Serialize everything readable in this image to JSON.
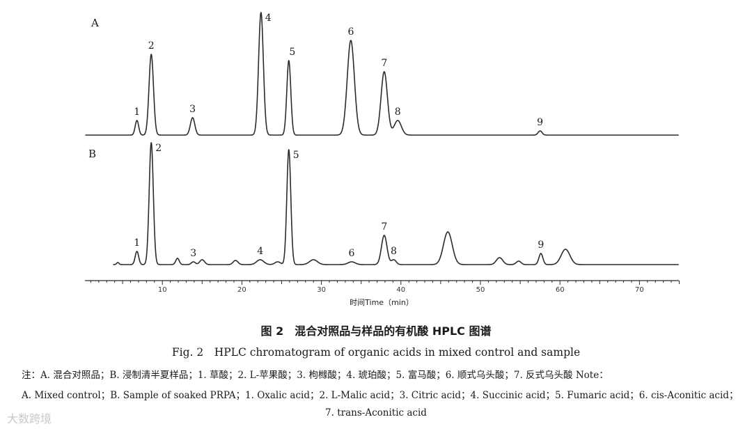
{
  "chart_data": {
    "type": "line",
    "xlabel": "时间Time（min）",
    "xlim": [
      0,
      75
    ],
    "x_ticks": [
      10,
      20,
      30,
      40,
      50,
      60,
      70
    ],
    "panels": [
      {
        "name": "A",
        "peaks": [
          {
            "label": "1",
            "t": 6.8,
            "h": 21,
            "w": 0.22
          },
          {
            "label": "2",
            "t": 8.6,
            "h": 116,
            "w": 0.28
          },
          {
            "label": "3",
            "t": 13.8,
            "h": 25,
            "w": 0.28
          },
          {
            "label": "4",
            "t": 22.4,
            "h": 176,
            "w": 0.3
          },
          {
            "label": "5",
            "t": 25.9,
            "h": 107,
            "w": 0.25
          },
          {
            "label": "6",
            "t": 33.7,
            "h": 136,
            "w": 0.45
          },
          {
            "label": "7",
            "t": 37.9,
            "h": 91,
            "w": 0.4
          },
          {
            "label": "8",
            "t": 39.6,
            "h": 21,
            "w": 0.45
          },
          {
            "label": "9",
            "t": 57.5,
            "h": 6,
            "w": 0.25
          }
        ],
        "extra": []
      },
      {
        "name": "B",
        "peaks": [
          {
            "label": "1",
            "t": 6.8,
            "h": 19,
            "w": 0.22
          },
          {
            "label": "2",
            "t": 8.6,
            "h": 175,
            "w": 0.26
          },
          {
            "label": "3",
            "t": 13.9,
            "h": 4,
            "w": 0.25
          },
          {
            "label": "4",
            "t": 22.3,
            "h": 7,
            "w": 0.45
          },
          {
            "label": "5",
            "t": 25.9,
            "h": 165,
            "w": 0.25
          },
          {
            "label": "6",
            "t": 33.8,
            "h": 4,
            "w": 0.45
          },
          {
            "label": "7",
            "t": 37.9,
            "h": 42,
            "w": 0.35
          },
          {
            "label": "8",
            "t": 39.1,
            "h": 7,
            "w": 0.3
          },
          {
            "label": "9",
            "t": 57.6,
            "h": 16,
            "w": 0.25
          }
        ],
        "extra": [
          {
            "t": 4.4,
            "h": 3,
            "w": 0.15
          },
          {
            "t": 11.9,
            "h": 9,
            "w": 0.22
          },
          {
            "t": 15.0,
            "h": 7,
            "w": 0.3
          },
          {
            "t": 19.2,
            "h": 6,
            "w": 0.3
          },
          {
            "t": 24.5,
            "h": 4,
            "w": 0.35
          },
          {
            "t": 29.0,
            "h": 7,
            "w": 0.5
          },
          {
            "t": 45.9,
            "h": 47,
            "w": 0.55
          },
          {
            "t": 52.4,
            "h": 10,
            "w": 0.4
          },
          {
            "t": 54.8,
            "h": 5,
            "w": 0.3
          },
          {
            "t": 60.7,
            "h": 22,
            "w": 0.55
          }
        ]
      }
    ]
  },
  "caption": {
    "cn": "图 2　混合对照品与样品的有机酸 HPLC 图谱",
    "en": "Fig. 2　HPLC chromatogram of organic acids in mixed control and sample"
  },
  "note": {
    "line1": "注：A. 混合对照品；B. 浸制清半夏样品；1. 草酸；2. L-苹果酸；3. 枸橼酸；4. 琥珀酸；5. 富马酸；6. 顺式乌头酸；7. 反式乌头酸 Note：",
    "line2": "A. Mixed control；B. Sample of soaked PRPA；1. Oxalic acid；2. L-Malic acid；3. Citric acid；4. Succinic acid；5. Fumaric acid；6. cis-Aconitic acid；",
    "line3": "7. trans-Aconitic acid"
  },
  "watermark": "大数跨境"
}
